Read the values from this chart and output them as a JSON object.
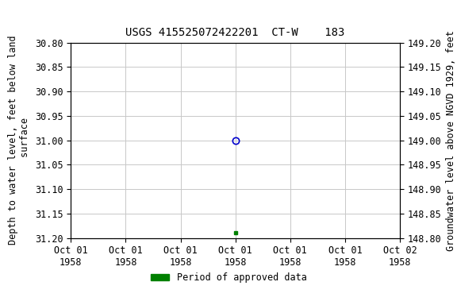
{
  "title": "USGS 415525072422201  CT-W    183",
  "left_ylabel": "Depth to water level, feet below land\n surface",
  "right_ylabel": "Groundwater level above NGVD 1929, feet",
  "ylim_left": [
    30.8,
    31.2
  ],
  "ylim_right_top": 149.2,
  "ylim_right_bottom": 148.8,
  "yticks_left": [
    30.8,
    30.85,
    30.9,
    30.95,
    31.0,
    31.05,
    31.1,
    31.15,
    31.2
  ],
  "yticks_right": [
    149.2,
    149.15,
    149.1,
    149.05,
    149.0,
    148.95,
    148.9,
    148.85,
    148.8
  ],
  "xlim": [
    0.0,
    6.0
  ],
  "xtick_positions": [
    0,
    1,
    2,
    3,
    4,
    5,
    6
  ],
  "xtick_labels": [
    "Oct 01\n1958",
    "Oct 01\n1958",
    "Oct 01\n1958",
    "Oct 01\n1958",
    "Oct 01\n1958",
    "Oct 01\n1958",
    "Oct 02\n1958"
  ],
  "blue_point_x": 3.0,
  "blue_point_y": 31.0,
  "green_point_x": 3.0,
  "green_point_y": 31.19,
  "background_color": "#ffffff",
  "plot_bg_color": "#ffffff",
  "grid_color": "#c8c8c8",
  "blue_color": "#0000cc",
  "green_color": "#008000",
  "font_family": "monospace",
  "title_fontsize": 10,
  "label_fontsize": 8.5,
  "tick_fontsize": 8.5,
  "legend_label": "Period of approved data"
}
